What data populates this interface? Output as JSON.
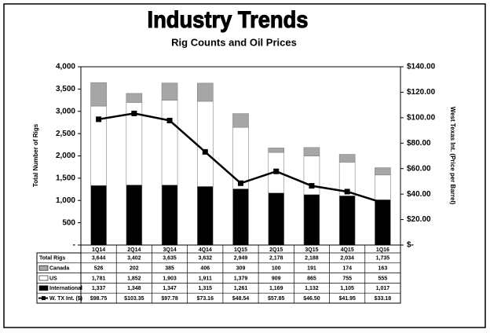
{
  "chart_data": {
    "type": "bar-line",
    "title": "Industry Trends",
    "subtitle": "Rig Counts and Oil Prices",
    "y_label": "Total Number of Rigs",
    "y2_label": "West Texas Int. (Price per Barrel)",
    "categories": [
      "1Q14",
      "2Q14",
      "3Q14",
      "4Q14",
      "1Q15",
      "2Q15",
      "3Q15",
      "4Q15",
      "1Q16"
    ],
    "total_rigs": {
      "name": "Total Rigs",
      "values": [
        3644,
        3402,
        3635,
        3632,
        2949,
        2178,
        2188,
        2034,
        1735
      ],
      "value_labels": [
        "3,644",
        "3,402",
        "3,635",
        "3,632",
        "2,949",
        "2,178",
        "2,188",
        "2,034",
        "1,735"
      ]
    },
    "series": [
      {
        "name": "Canada",
        "color": "#a6a6a6",
        "values": [
          526,
          202,
          385,
          406,
          309,
          100,
          191,
          174,
          163
        ],
        "value_labels": [
          "526",
          "202",
          "385",
          "406",
          "309",
          "100",
          "191",
          "174",
          "163"
        ]
      },
      {
        "name": "US",
        "color": "#ffffff",
        "values": [
          1781,
          1852,
          1903,
          1911,
          1379,
          909,
          865,
          755,
          555
        ],
        "value_labels": [
          "1,781",
          "1,852",
          "1,903",
          "1,911",
          "1,379",
          "909",
          "865",
          "755",
          "555"
        ]
      },
      {
        "name": "International",
        "color": "#000000",
        "values": [
          1337,
          1348,
          1347,
          1315,
          1261,
          1169,
          1132,
          1105,
          1017
        ],
        "value_labels": [
          "1,337",
          "1,348",
          "1,347",
          "1,315",
          "1,261",
          "1,169",
          "1,132",
          "1,105",
          "1,017"
        ]
      },
      {
        "name": "W. TX Int. ($)",
        "color": "#000000",
        "axis": "y2",
        "values": [
          98.75,
          103.35,
          97.78,
          73.16,
          48.54,
          57.85,
          46.5,
          41.95,
          33.18
        ],
        "value_labels": [
          "$98.75",
          "$103.35",
          "$97.78",
          "$73.16",
          "$48.54",
          "$57.85",
          "$46.50",
          "$41.95",
          "$33.18"
        ]
      }
    ],
    "ylim": [
      0,
      4000
    ],
    "yticks": [
      {
        "value": 0,
        "label": "-"
      },
      500,
      {
        "value": 1000,
        "label": "1,000"
      },
      {
        "value": 1500,
        "label": "1,500"
      },
      {
        "value": 2000,
        "label": "2,000"
      },
      {
        "value": 2500,
        "label": "2,500"
      },
      {
        "value": 3000,
        "label": "3,000"
      },
      {
        "value": 3500,
        "label": "3,500"
      },
      {
        "value": 4000,
        "label": "4,000"
      }
    ],
    "y2lim": [
      0,
      140
    ],
    "y2ticks": [
      {
        "value": 0,
        "label": "$-"
      },
      {
        "value": 20,
        "label": "$20.00"
      },
      {
        "value": 40,
        "label": "$40.00"
      },
      {
        "value": 60,
        "label": "$60.00"
      },
      {
        "value": 80,
        "label": "$80.00"
      },
      {
        "value": 100,
        "label": "$100.00"
      },
      {
        "value": 120,
        "label": "$120.00"
      },
      {
        "value": 140,
        "label": "$140.00"
      }
    ]
  }
}
